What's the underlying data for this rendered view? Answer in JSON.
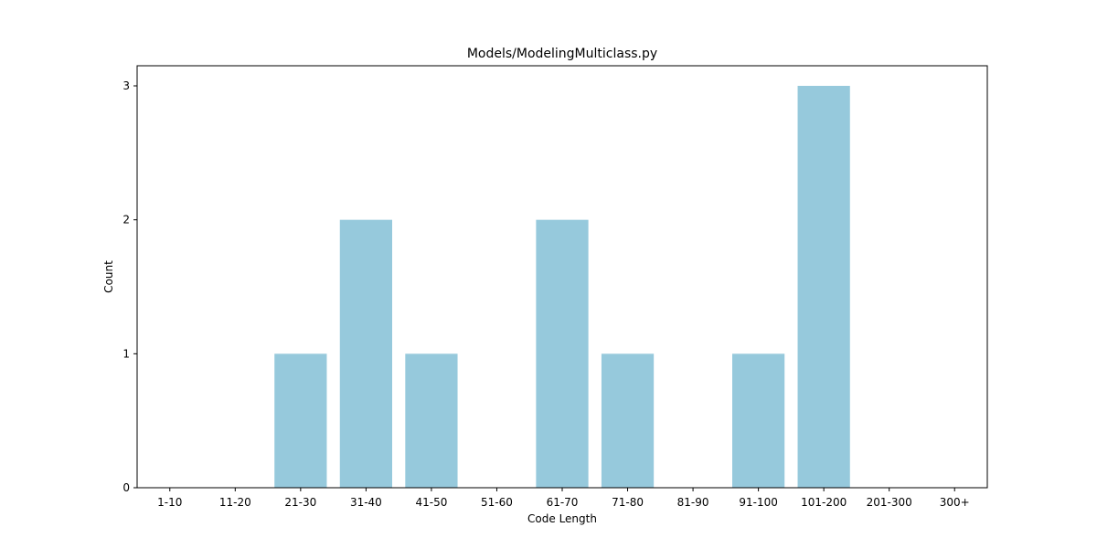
{
  "chart_data": {
    "type": "bar",
    "title": "Models/ModelingMulticlass.py",
    "xlabel": "Code Length",
    "ylabel": "Count",
    "categories": [
      "1-10",
      "11-20",
      "21-30",
      "31-40",
      "41-50",
      "51-60",
      "61-70",
      "71-80",
      "81-90",
      "91-100",
      "101-200",
      "201-300",
      "300+"
    ],
    "values": [
      0,
      0,
      1,
      2,
      1,
      0,
      2,
      1,
      0,
      1,
      3,
      0,
      0
    ],
    "ylim": [
      0,
      3.15
    ],
    "yticks": [
      0,
      1,
      2,
      3
    ],
    "bar_color": "#96c9dc",
    "grid": false,
    "legend": "none"
  }
}
